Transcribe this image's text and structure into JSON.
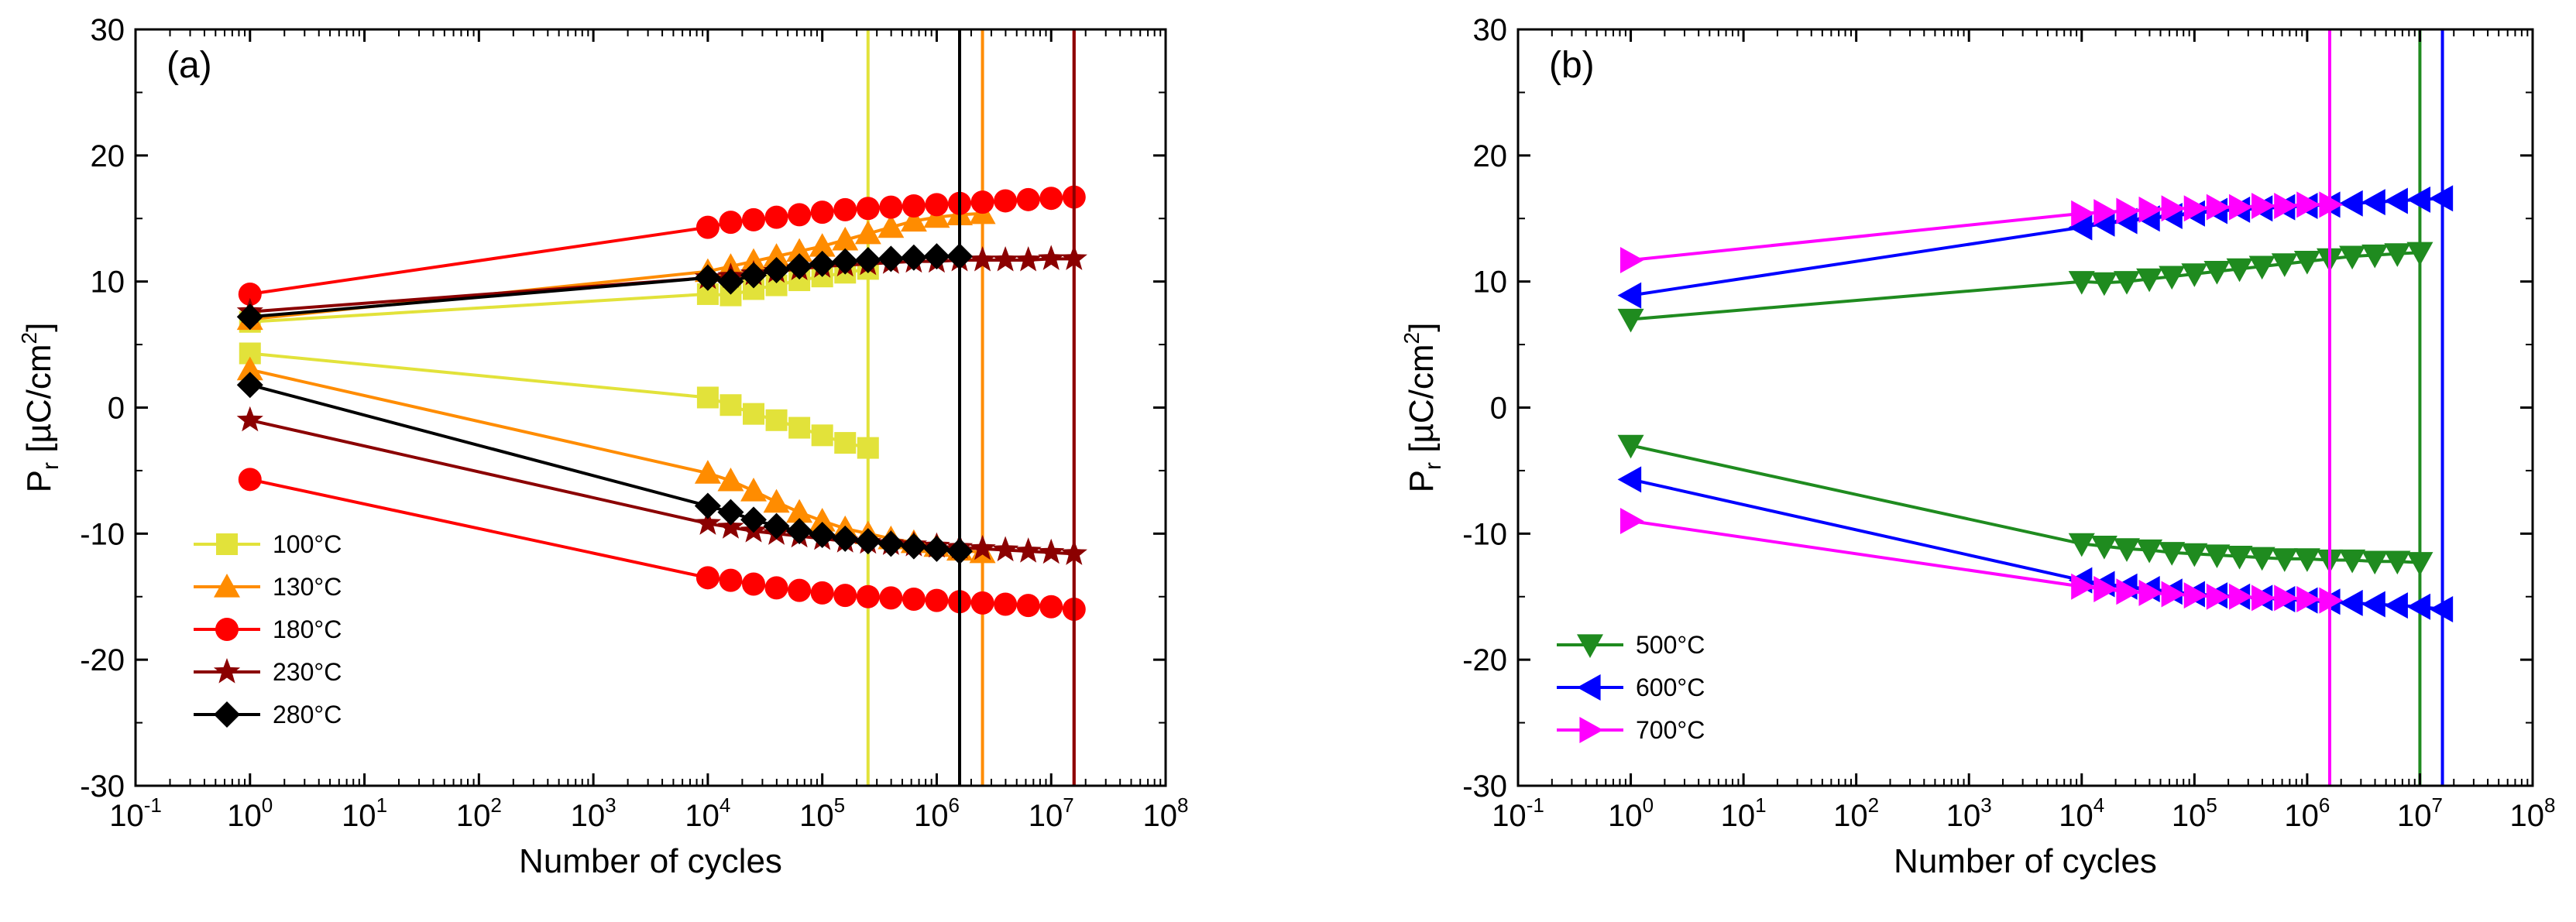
{
  "chart_data": [
    {
      "type": "line",
      "panel_label": "(a)",
      "xlabel": "Number of cycles",
      "ylabel": "Pr [µC/cm²]",
      "ylabel_parts": {
        "p": "P",
        "sub": "r",
        "rest": " [µC/cm",
        "sup": "2",
        "end": "]"
      },
      "xscale": "log",
      "xlim_exp": [
        -1,
        8
      ],
      "xtick_exps": [
        "-1",
        "0",
        "1",
        "2",
        "3",
        "4",
        "5",
        "6",
        "7",
        "8"
      ],
      "ylim": [
        -30,
        30
      ],
      "ytick_labels": [
        "-30",
        "-20",
        "-10",
        "0",
        "10",
        "20",
        "30"
      ],
      "legend_position": "bottom-left",
      "series": [
        {
          "name": "100°C",
          "color": "#e2e23a",
          "marker": "square",
          "upper": [
            [
              0,
              6.8
            ],
            [
              4,
              9.0
            ],
            [
              4.2,
              8.9
            ],
            [
              4.4,
              9.4
            ],
            [
              4.6,
              9.7
            ],
            [
              4.8,
              10.1
            ],
            [
              5.0,
              10.4
            ],
            [
              5.2,
              10.7
            ],
            [
              5.4,
              11.0
            ]
          ],
          "lower": [
            [
              0,
              4.3
            ],
            [
              4,
              0.8
            ],
            [
              4.2,
              0.2
            ],
            [
              4.4,
              -0.5
            ],
            [
              4.6,
              -1.0
            ],
            [
              4.8,
              -1.6
            ],
            [
              5.0,
              -2.2
            ],
            [
              5.2,
              -2.8
            ],
            [
              5.4,
              -3.2
            ]
          ],
          "breakdown": 5.4
        },
        {
          "name": "130°C",
          "color": "#ff8c00",
          "marker": "triangle-up",
          "upper": [
            [
              0,
              7.0
            ],
            [
              4,
              10.8
            ],
            [
              4.2,
              11.2
            ],
            [
              4.4,
              11.6
            ],
            [
              4.6,
              12.0
            ],
            [
              4.8,
              12.4
            ],
            [
              5.0,
              12.8
            ],
            [
              5.2,
              13.3
            ],
            [
              5.4,
              13.8
            ],
            [
              5.6,
              14.3
            ],
            [
              5.8,
              14.8
            ],
            [
              6.0,
              15.1
            ],
            [
              6.2,
              15.3
            ],
            [
              6.4,
              15.4
            ]
          ],
          "lower": [
            [
              0,
              3.0
            ],
            [
              4,
              -5.2
            ],
            [
              4.2,
              -5.8
            ],
            [
              4.4,
              -6.6
            ],
            [
              4.6,
              -7.5
            ],
            [
              4.8,
              -8.3
            ],
            [
              5.0,
              -9.0
            ],
            [
              5.2,
              -9.6
            ],
            [
              5.4,
              -10.0
            ],
            [
              5.6,
              -10.4
            ],
            [
              5.8,
              -10.7
            ],
            [
              6.0,
              -11.0
            ],
            [
              6.2,
              -11.3
            ],
            [
              6.4,
              -11.5
            ]
          ],
          "breakdown": 6.4
        },
        {
          "name": "180°C",
          "color": "#ff0000",
          "marker": "circle",
          "upper": [
            [
              0,
              9.0
            ],
            [
              4,
              14.3
            ],
            [
              4.2,
              14.7
            ],
            [
              4.4,
              14.9
            ],
            [
              4.6,
              15.1
            ],
            [
              4.8,
              15.3
            ],
            [
              5.0,
              15.5
            ],
            [
              5.2,
              15.7
            ],
            [
              5.4,
              15.8
            ],
            [
              5.6,
              15.9
            ],
            [
              5.8,
              16.0
            ],
            [
              6.0,
              16.1
            ],
            [
              6.2,
              16.2
            ],
            [
              6.4,
              16.3
            ],
            [
              6.6,
              16.4
            ],
            [
              6.8,
              16.5
            ],
            [
              7.0,
              16.6
            ],
            [
              7.2,
              16.7
            ]
          ],
          "lower": [
            [
              0,
              -5.7
            ],
            [
              4,
              -13.5
            ],
            [
              4.2,
              -13.7
            ],
            [
              4.4,
              -14.0
            ],
            [
              4.6,
              -14.3
            ],
            [
              4.8,
              -14.5
            ],
            [
              5.0,
              -14.7
            ],
            [
              5.2,
              -14.9
            ],
            [
              5.4,
              -15.0
            ],
            [
              5.6,
              -15.1
            ],
            [
              5.8,
              -15.2
            ],
            [
              6.0,
              -15.3
            ],
            [
              6.2,
              -15.4
            ],
            [
              6.4,
              -15.5
            ],
            [
              6.6,
              -15.6
            ],
            [
              6.8,
              -15.7
            ],
            [
              7.0,
              -15.8
            ],
            [
              7.2,
              -16.0
            ]
          ],
          "breakdown": 7.2
        },
        {
          "name": "230°C",
          "color": "#8b0000",
          "marker": "star",
          "upper": [
            [
              0,
              7.6
            ],
            [
              4,
              10.3
            ],
            [
              4.2,
              10.4
            ],
            [
              4.4,
              10.6
            ],
            [
              4.6,
              10.8
            ],
            [
              4.8,
              11.0
            ],
            [
              5.0,
              11.2
            ],
            [
              5.2,
              11.3
            ],
            [
              5.4,
              11.4
            ],
            [
              5.6,
              11.5
            ],
            [
              5.8,
              11.6
            ],
            [
              6.0,
              11.6
            ],
            [
              6.2,
              11.7
            ],
            [
              6.4,
              11.7
            ],
            [
              6.6,
              11.7
            ],
            [
              6.8,
              11.7
            ],
            [
              7.0,
              11.8
            ],
            [
              7.2,
              11.8
            ]
          ],
          "lower": [
            [
              0,
              -1.0
            ],
            [
              4,
              -9.2
            ],
            [
              4.2,
              -9.5
            ],
            [
              4.4,
              -9.8
            ],
            [
              4.6,
              -10.0
            ],
            [
              4.8,
              -10.2
            ],
            [
              5.0,
              -10.4
            ],
            [
              5.2,
              -10.6
            ],
            [
              5.4,
              -10.7
            ],
            [
              5.6,
              -10.8
            ],
            [
              5.8,
              -10.9
            ],
            [
              6.0,
              -11.0
            ],
            [
              6.2,
              -11.1
            ],
            [
              6.4,
              -11.2
            ],
            [
              6.6,
              -11.3
            ],
            [
              6.8,
              -11.4
            ],
            [
              7.0,
              -11.5
            ],
            [
              7.2,
              -11.6
            ]
          ],
          "breakdown": 7.2
        },
        {
          "name": "280°C",
          "color": "#000000",
          "marker": "diamond",
          "upper": [
            [
              0,
              7.2
            ],
            [
              4,
              10.3
            ],
            [
              4.2,
              10.0
            ],
            [
              4.4,
              10.5
            ],
            [
              4.6,
              10.9
            ],
            [
              4.8,
              11.2
            ],
            [
              5.0,
              11.4
            ],
            [
              5.2,
              11.6
            ],
            [
              5.4,
              11.7
            ],
            [
              5.6,
              11.8
            ],
            [
              5.8,
              11.9
            ],
            [
              6.0,
              12.0
            ],
            [
              6.2,
              12.0
            ]
          ],
          "lower": [
            [
              0,
              1.8
            ],
            [
              4,
              -7.8
            ],
            [
              4.2,
              -8.3
            ],
            [
              4.4,
              -8.9
            ],
            [
              4.6,
              -9.4
            ],
            [
              4.8,
              -9.8
            ],
            [
              5.0,
              -10.1
            ],
            [
              5.2,
              -10.4
            ],
            [
              5.4,
              -10.6
            ],
            [
              5.6,
              -10.8
            ],
            [
              5.8,
              -11.0
            ],
            [
              6.0,
              -11.2
            ],
            [
              6.2,
              -11.4
            ]
          ],
          "breakdown": 6.2
        }
      ]
    },
    {
      "type": "line",
      "panel_label": "(b)",
      "xlabel": "Number of cycles",
      "ylabel": "Pr [µC/cm²]",
      "ylabel_parts": {
        "p": "P",
        "sub": "r",
        "rest": " [µC/cm",
        "sup": "2",
        "end": "]"
      },
      "xscale": "log",
      "xlim_exp": [
        -1,
        8
      ],
      "xtick_exps": [
        "-1",
        "0",
        "1",
        "2",
        "3",
        "4",
        "5",
        "6",
        "7",
        "8"
      ],
      "ylim": [
        -30,
        30
      ],
      "ytick_labels": [
        "-30",
        "-20",
        "-10",
        "0",
        "10",
        "20",
        "30"
      ],
      "legend_position": "bottom-left",
      "series": [
        {
          "name": "500°C",
          "color": "#1f8b1f",
          "marker": "triangle-down",
          "upper": [
            [
              0,
              7.0
            ],
            [
              4,
              10.0
            ],
            [
              4.2,
              9.9
            ],
            [
              4.4,
              10.0
            ],
            [
              4.6,
              10.2
            ],
            [
              4.8,
              10.4
            ],
            [
              5.0,
              10.6
            ],
            [
              5.2,
              10.8
            ],
            [
              5.4,
              11.0
            ],
            [
              5.6,
              11.2
            ],
            [
              5.8,
              11.4
            ],
            [
              6.0,
              11.6
            ],
            [
              6.2,
              11.8
            ],
            [
              6.4,
              12.0
            ],
            [
              6.6,
              12.1
            ],
            [
              6.8,
              12.2
            ],
            [
              7.0,
              12.3
            ]
          ],
          "lower": [
            [
              0,
              -3.0
            ],
            [
              4,
              -10.8
            ],
            [
              4.2,
              -11.0
            ],
            [
              4.4,
              -11.2
            ],
            [
              4.6,
              -11.3
            ],
            [
              4.8,
              -11.5
            ],
            [
              5.0,
              -11.6
            ],
            [
              5.2,
              -11.7
            ],
            [
              5.4,
              -11.8
            ],
            [
              5.6,
              -11.9
            ],
            [
              5.8,
              -12.0
            ],
            [
              6.0,
              -12.0
            ],
            [
              6.2,
              -12.1
            ],
            [
              6.4,
              -12.1
            ],
            [
              6.6,
              -12.2
            ],
            [
              6.8,
              -12.2
            ],
            [
              7.0,
              -12.3
            ]
          ],
          "breakdown": 7.0
        },
        {
          "name": "600°C",
          "color": "#0000ff",
          "marker": "triangle-left",
          "upper": [
            [
              0,
              8.9
            ],
            [
              4,
              14.3
            ],
            [
              4.2,
              14.6
            ],
            [
              4.4,
              14.8
            ],
            [
              4.6,
              15.0
            ],
            [
              4.8,
              15.2
            ],
            [
              5.0,
              15.4
            ],
            [
              5.2,
              15.6
            ],
            [
              5.4,
              15.7
            ],
            [
              5.6,
              15.8
            ],
            [
              5.8,
              15.9
            ],
            [
              6.0,
              16.0
            ],
            [
              6.2,
              16.1
            ],
            [
              6.4,
              16.2
            ],
            [
              6.6,
              16.3
            ],
            [
              6.8,
              16.4
            ],
            [
              7.0,
              16.5
            ],
            [
              7.2,
              16.6
            ]
          ],
          "lower": [
            [
              0,
              -5.7
            ],
            [
              4,
              -13.7
            ],
            [
              4.2,
              -14.0
            ],
            [
              4.4,
              -14.2
            ],
            [
              4.6,
              -14.4
            ],
            [
              4.8,
              -14.6
            ],
            [
              5.0,
              -14.8
            ],
            [
              5.2,
              -14.9
            ],
            [
              5.4,
              -15.0
            ],
            [
              5.6,
              -15.1
            ],
            [
              5.8,
              -15.2
            ],
            [
              6.0,
              -15.3
            ],
            [
              6.2,
              -15.4
            ],
            [
              6.4,
              -15.5
            ],
            [
              6.6,
              -15.6
            ],
            [
              6.8,
              -15.7
            ],
            [
              7.0,
              -15.8
            ],
            [
              7.2,
              -16.0
            ]
          ],
          "breakdown": 7.2
        },
        {
          "name": "700°C",
          "color": "#ff00ff",
          "marker": "triangle-right",
          "upper": [
            [
              0,
              11.7
            ],
            [
              4,
              15.4
            ],
            [
              4.2,
              15.5
            ],
            [
              4.4,
              15.6
            ],
            [
              4.6,
              15.7
            ],
            [
              4.8,
              15.8
            ],
            [
              5.0,
              15.8
            ],
            [
              5.2,
              15.9
            ],
            [
              5.4,
              15.9
            ],
            [
              5.6,
              16.0
            ],
            [
              5.8,
              16.0
            ],
            [
              6.0,
              16.1
            ],
            [
              6.2,
              16.1
            ]
          ],
          "lower": [
            [
              0,
              -9.0
            ],
            [
              4,
              -14.2
            ],
            [
              4.2,
              -14.4
            ],
            [
              4.4,
              -14.6
            ],
            [
              4.6,
              -14.7
            ],
            [
              4.8,
              -14.8
            ],
            [
              5.0,
              -14.9
            ],
            [
              5.2,
              -15.0
            ],
            [
              5.4,
              -15.0
            ],
            [
              5.6,
              -15.1
            ],
            [
              5.8,
              -15.1
            ],
            [
              6.0,
              -15.2
            ],
            [
              6.2,
              -15.3
            ]
          ],
          "breakdown": 6.2
        }
      ]
    }
  ]
}
